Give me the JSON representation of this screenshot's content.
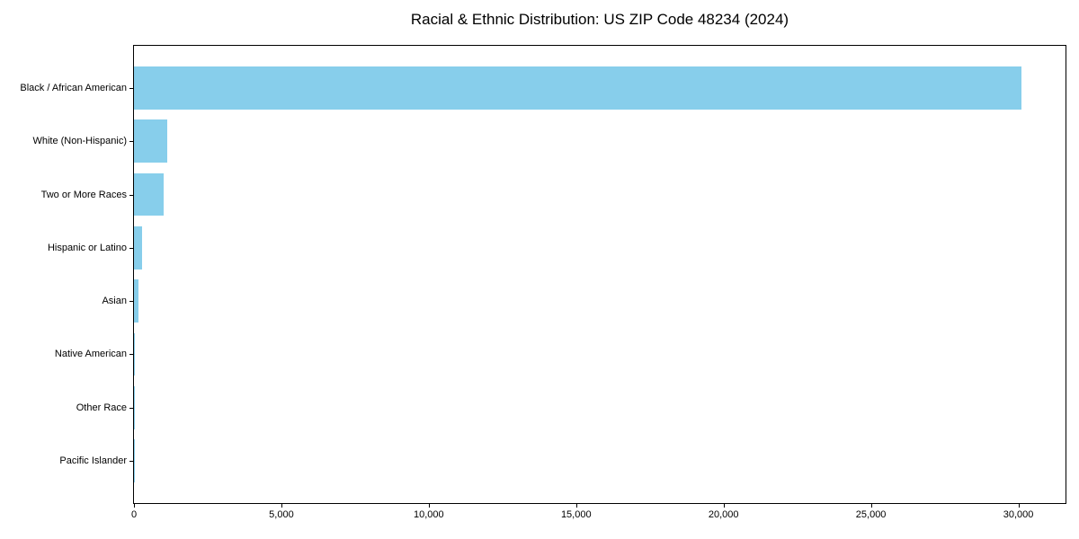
{
  "figure": {
    "background": "#FFFFFF",
    "axis_color": "#000000",
    "text_color": "#000000"
  },
  "chart_data": {
    "type": "bar",
    "orientation": "horizontal",
    "title": "Racial & Ethnic Distribution: US ZIP Code 48234 (2024)",
    "categories": [
      "Black / African American",
      "White (Non-Hispanic)",
      "Two or More Races",
      "Hispanic or Latino",
      "Asian",
      "Native American",
      "Other Race",
      "Pacific Islander"
    ],
    "values": [
      30100,
      1120,
      1000,
      260,
      150,
      45,
      30,
      8
    ],
    "bar_color": "#87CEEB",
    "xlabel": "",
    "ylabel": "",
    "xlim": [
      0,
      31600
    ],
    "xticks": [
      0,
      5000,
      10000,
      15000,
      20000,
      25000,
      30000
    ],
    "xtick_labels": [
      "0",
      "5,000",
      "10,000",
      "15,000",
      "20,000",
      "25,000",
      "30,000"
    ],
    "grid": false,
    "legend": null
  }
}
